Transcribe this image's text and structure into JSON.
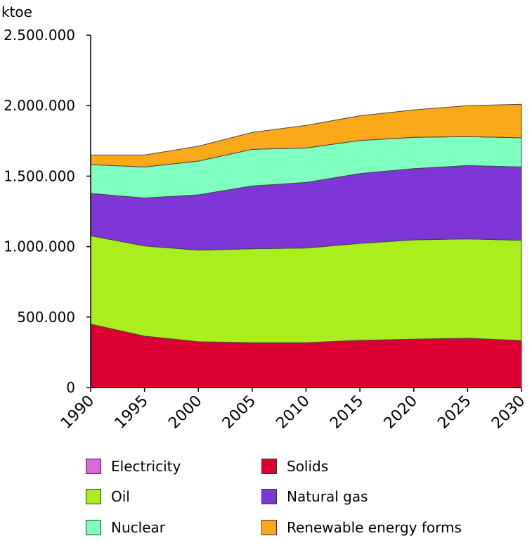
{
  "chart_data": {
    "type": "area",
    "stacked": true,
    "ylabel": "ktoe",
    "x": [
      "1990",
      "1995",
      "2000",
      "2005",
      "2010",
      "2015",
      "2020",
      "2025",
      "2030"
    ],
    "ylim": [
      0,
      2500000
    ],
    "yticks": [
      "0",
      "500.000",
      "1.000.000",
      "1.500.000",
      "2.000.000",
      "2.500.000"
    ],
    "ytick_values": [
      0,
      500000,
      1000000,
      1500000,
      2000000,
      2500000
    ],
    "grid": false,
    "legend_position": "bottom",
    "series": [
      {
        "name": "Solids",
        "color": "#dc0032",
        "values": [
          450000,
          365000,
          325000,
          318000,
          318000,
          335000,
          343000,
          350000,
          333000
        ]
      },
      {
        "name": "Oil",
        "color": "#aaee1e",
        "values": [
          627000,
          640000,
          650000,
          667000,
          672000,
          688000,
          705000,
          705000,
          712000
        ]
      },
      {
        "name": "Natural gas",
        "color": "#7e36d6",
        "values": [
          300000,
          340000,
          392000,
          445000,
          465000,
          495000,
          505000,
          520000,
          520000
        ]
      },
      {
        "name": "Nuclear",
        "color": "#7fffc0",
        "values": [
          205000,
          220000,
          240000,
          260000,
          245000,
          235000,
          222000,
          205000,
          207000
        ]
      },
      {
        "name": "Electricity",
        "color": "#dd66dd",
        "values": [
          0,
          0,
          0,
          0,
          0,
          0,
          0,
          0,
          0
        ]
      },
      {
        "name": "Renewable energy forms",
        "color": "#fba918",
        "values": [
          68000,
          85000,
          105000,
          120000,
          160000,
          175000,
          195000,
          220000,
          238000
        ]
      }
    ]
  },
  "legend": [
    {
      "label": "Electricity",
      "color": "#dd66dd"
    },
    {
      "label": "Solids",
      "color": "#dc0032"
    },
    {
      "label": "Oil",
      "color": "#aaee1e"
    },
    {
      "label": "Natural gas",
      "color": "#7e36d6"
    },
    {
      "label": "Nuclear",
      "color": "#7fffc0"
    },
    {
      "label": "Renewable energy forms",
      "color": "#fba918"
    }
  ]
}
